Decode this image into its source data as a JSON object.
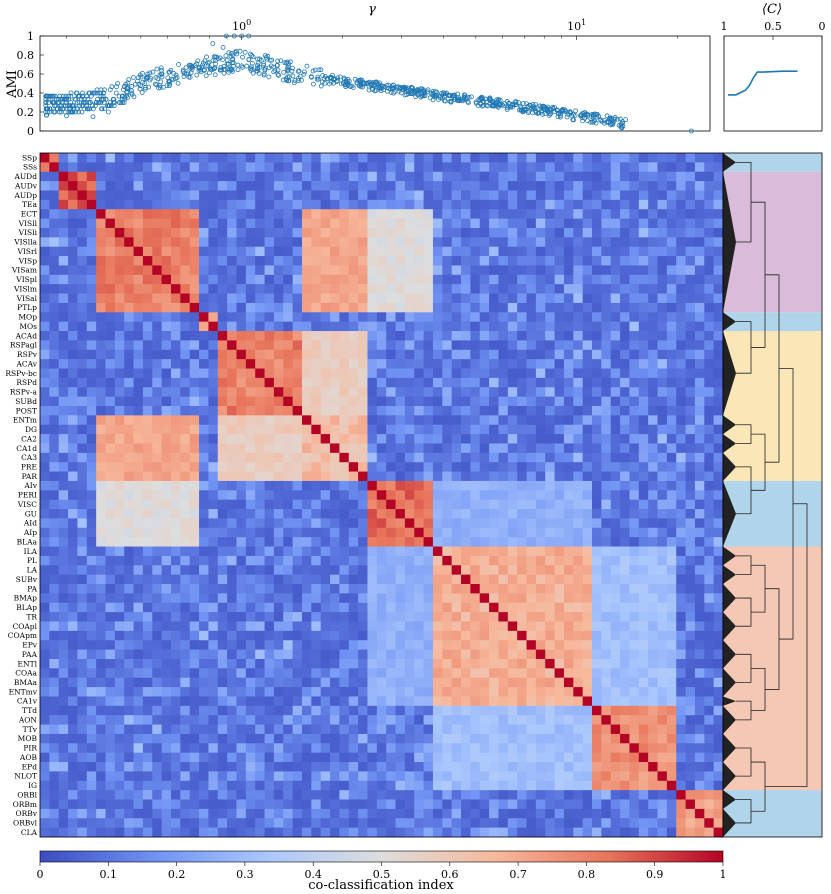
{
  "chart_data": [
    {
      "type": "scatter",
      "title": "",
      "xlabel": "γ",
      "ylabel": "AMI",
      "xscale": "log",
      "xlim": [
        0.25,
        25
      ],
      "ylim": [
        0,
        1
      ],
      "x_ticks": [
        {
          "value": 1,
          "label": "10^0"
        },
        {
          "value": 10,
          "label": "10^1"
        }
      ],
      "y_ticks": [
        "0",
        "0.2",
        "0.4",
        "0.6",
        "0.8",
        "1"
      ],
      "grid": false,
      "marker": "open-circle",
      "color": "#1f77b4",
      "trend_points": [
        {
          "x": 0.26,
          "y": 0.28
        },
        {
          "x": 0.32,
          "y": 0.3
        },
        {
          "x": 0.4,
          "y": 0.34
        },
        {
          "x": 0.5,
          "y": 0.5
        },
        {
          "x": 0.6,
          "y": 0.58
        },
        {
          "x": 0.75,
          "y": 0.66
        },
        {
          "x": 0.9,
          "y": 0.72
        },
        {
          "x": 1.0,
          "y": 0.74
        },
        {
          "x": 1.2,
          "y": 0.68
        },
        {
          "x": 1.5,
          "y": 0.6
        },
        {
          "x": 2.0,
          "y": 0.52
        },
        {
          "x": 2.5,
          "y": 0.47
        },
        {
          "x": 3.0,
          "y": 0.43
        },
        {
          "x": 4.0,
          "y": 0.36
        },
        {
          "x": 5.0,
          "y": 0.32
        },
        {
          "x": 6.0,
          "y": 0.28
        },
        {
          "x": 8.0,
          "y": 0.22
        },
        {
          "x": 10.0,
          "y": 0.16
        },
        {
          "x": 12.0,
          "y": 0.12
        },
        {
          "x": 14.0,
          "y": 0.07
        }
      ],
      "outliers": [
        {
          "x": 0.9,
          "y": 1.0
        },
        {
          "x": 0.95,
          "y": 1.0
        },
        {
          "x": 1.0,
          "y": 1.0
        },
        {
          "x": 1.05,
          "y": 1.0
        },
        {
          "x": 0.82,
          "y": 0.92
        },
        {
          "x": 0.88,
          "y": 0.88
        },
        {
          "x": 0.3,
          "y": 0.16
        },
        {
          "x": 0.36,
          "y": 0.15
        },
        {
          "x": 0.4,
          "y": 0.2
        },
        {
          "x": 22.0,
          "y": 0.0
        }
      ]
    },
    {
      "type": "line",
      "xlabel": "⟨C⟩",
      "ylabel": "",
      "xlim": [
        1,
        0
      ],
      "ylim": [
        0,
        1
      ],
      "x_ticks": [
        "1",
        "0.5",
        "0"
      ],
      "points": [
        {
          "x": 0.96,
          "y": 0.38
        },
        {
          "x": 0.88,
          "y": 0.38
        },
        {
          "x": 0.84,
          "y": 0.4
        },
        {
          "x": 0.78,
          "y": 0.43
        },
        {
          "x": 0.74,
          "y": 0.48
        },
        {
          "x": 0.7,
          "y": 0.56
        },
        {
          "x": 0.66,
          "y": 0.62
        },
        {
          "x": 0.6,
          "y": 0.62
        },
        {
          "x": 0.4,
          "y": 0.63
        },
        {
          "x": 0.25,
          "y": 0.63
        }
      ]
    },
    {
      "type": "heatmap",
      "colorbar_label": "co-classification index",
      "colorbar_ticks": [
        "0",
        "0.1",
        "0.2",
        "0.3",
        "0.4",
        "0.5",
        "0.6",
        "0.7",
        "0.8",
        "0.9",
        "1"
      ],
      "vmin": 0,
      "vmax": 1,
      "colormap": [
        "#3b4cc0",
        "#7092f3",
        "#aac7fd",
        "#dddddd",
        "#f7b89c",
        "#e7745b",
        "#b40426"
      ],
      "regions": [
        "SSp",
        "SSs",
        "AUDd",
        "AUDv",
        "AUDp",
        "TEa",
        "ECT",
        "VISll",
        "VISli",
        "VISlla",
        "VISrl",
        "VISp",
        "VISam",
        "VISpl",
        "VISlm",
        "VISal",
        "PTLp",
        "MOp",
        "MOs",
        "ACAd",
        "RSPagl",
        "RSPv",
        "ACAv",
        "RSPv-bc",
        "RSPd",
        "RSPv-a",
        "SUBd",
        "POST",
        "ENTm",
        "DG",
        "CA2",
        "CA1d",
        "CA3",
        "PRE",
        "PAR",
        "AIv",
        "PERI",
        "VISC",
        "GU",
        "AId",
        "AIp",
        "BLAa",
        "ILA",
        "PL",
        "LA",
        "SUBv",
        "PA",
        "BMAp",
        "BLAp",
        "TR",
        "COApl",
        "COApm",
        "EPv",
        "PAA",
        "ENTl",
        "COAa",
        "BMAa",
        "ENTmv",
        "CA1v",
        "TTd",
        "AON",
        "TTv",
        "MOB",
        "PIR",
        "AOB",
        "EPd",
        "NLOT",
        "IG",
        "ORBl",
        "ORBm",
        "ORBv",
        "ORBvl",
        "CLA"
      ],
      "block_structure": [
        {
          "start": 0,
          "end": 1,
          "intra": 0.82
        },
        {
          "start": 2,
          "end": 5,
          "intra": 0.92
        },
        {
          "start": 6,
          "end": 16,
          "intra": 0.86
        },
        {
          "start": 17,
          "end": 18,
          "intra": 0.8
        },
        {
          "start": 19,
          "end": 27,
          "intra": 0.86
        },
        {
          "start": 28,
          "end": 34,
          "intra": 0.7
        },
        {
          "start": 35,
          "end": 41,
          "intra": 0.9
        },
        {
          "start": 42,
          "end": 58,
          "intra": 0.74
        },
        {
          "start": 59,
          "end": 67,
          "intra": 0.82
        },
        {
          "start": 68,
          "end": 72,
          "intra": 0.78
        }
      ],
      "block_coupling": [
        {
          "a": 2,
          "b": 6,
          "value": 0.55
        },
        {
          "a": 2,
          "b": 5,
          "value": 0.75
        },
        {
          "a": 4,
          "b": 5,
          "value": 0.62
        },
        {
          "a": 0,
          "b": 17,
          "value": 0.4
        },
        {
          "a": 7,
          "b": 8,
          "value": 0.35
        },
        {
          "a": 6,
          "b": 7,
          "value": 0.3
        }
      ]
    },
    {
      "type": "dendrogram",
      "cluster_colors": [
        "#b0d4ea",
        "#d8bcd9",
        "#fbe6b8",
        "#f5c7b5"
      ],
      "cluster_bands": [
        {
          "start": 0,
          "end": 1,
          "color_index": 0
        },
        {
          "start": 2,
          "end": 16,
          "color_index": 1
        },
        {
          "start": 17,
          "end": 18,
          "color_index": 0
        },
        {
          "start": 19,
          "end": 34,
          "color_index": 2
        },
        {
          "start": 35,
          "end": 41,
          "color_index": 0
        },
        {
          "start": 42,
          "end": 67,
          "color_index": 3
        },
        {
          "start": 68,
          "end": 72,
          "color_index": 0
        }
      ],
      "module_starts": [
        0,
        2,
        17,
        19,
        28,
        30,
        32,
        35,
        42,
        44,
        46,
        49,
        52,
        55,
        58,
        59,
        62,
        65,
        68,
        70
      ]
    }
  ]
}
